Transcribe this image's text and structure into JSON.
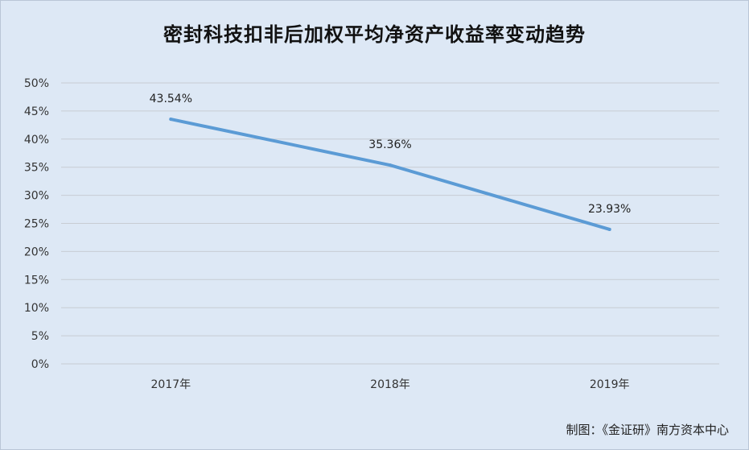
{
  "title": "密封科技扣非后加权平均净资产收益率变动趋势",
  "source_note": "制图：《金证研》南方资本中心",
  "colors": {
    "background": "#dde8f5",
    "line": "#5b9bd5",
    "grid": "#c7ccd3"
  },
  "chart_data": {
    "type": "line",
    "title": "密封科技扣非后加权平均净资产收益率变动趋势",
    "categories": [
      "2017年",
      "2018年",
      "2019年"
    ],
    "series": [
      {
        "values": [
          43.54,
          35.36,
          23.93
        ],
        "labels": [
          "43.54%",
          "35.36%",
          "23.93%"
        ]
      }
    ],
    "y_ticks": [
      "0%",
      "5%",
      "10%",
      "15%",
      "20%",
      "25%",
      "30%",
      "35%",
      "40%",
      "45%",
      "50%"
    ],
    "ylim": [
      0,
      50
    ],
    "y_step": 5,
    "grid": true,
    "legend": "none",
    "xlabel": "",
    "ylabel": ""
  }
}
